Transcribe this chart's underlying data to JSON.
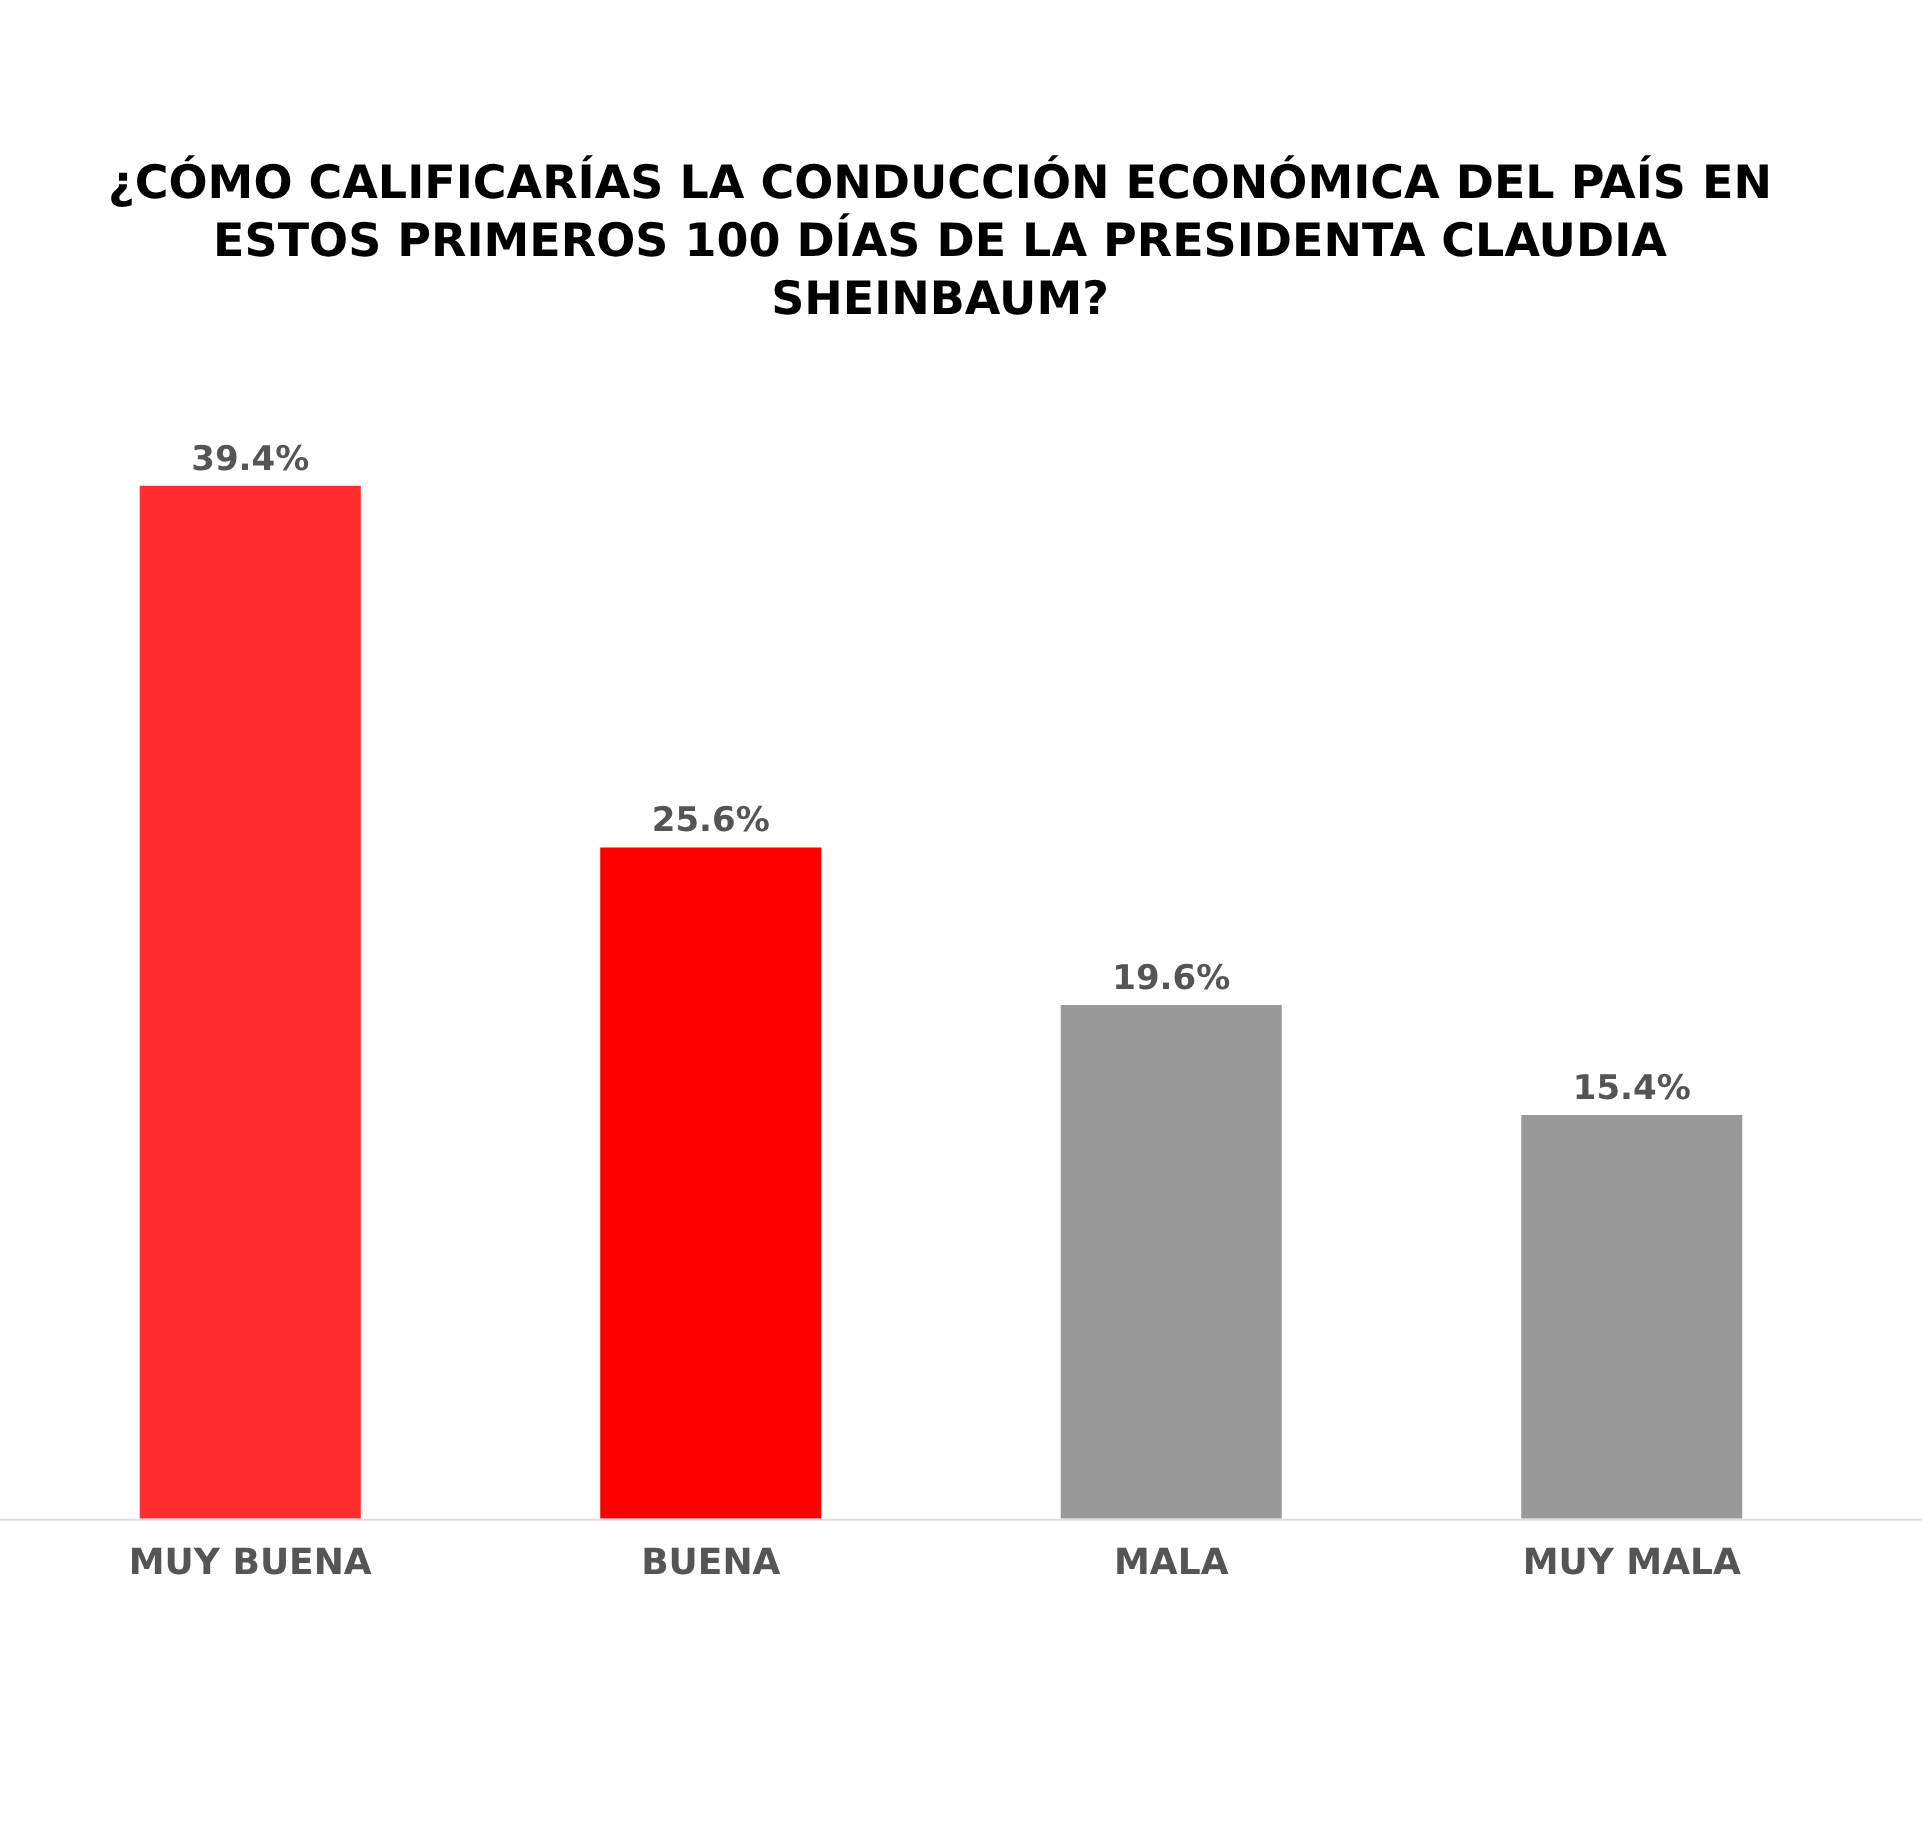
{
  "chart_data": {
    "type": "bar",
    "title": "¿CÓMO CALIFICARÍAS LA CONDUCCIÓN ECONÓMICA DEL PAÍS EN ESTOS PRIMEROS 100 DÍAS DE LA PRESIDENTA CLAUDIA SHEINBAUM?",
    "categories": [
      "MUY BUENA",
      "BUENA",
      "MALA",
      "MUY MALA"
    ],
    "values": [
      39.4,
      25.6,
      19.6,
      15.4
    ],
    "colors": [
      "#ff2d2d",
      "#ff0000",
      "#999999",
      "#999999"
    ],
    "value_labels": [
      "39.4%",
      "25.6%",
      "19.6%",
      "15.4%"
    ],
    "grid": false,
    "legend": false
  }
}
